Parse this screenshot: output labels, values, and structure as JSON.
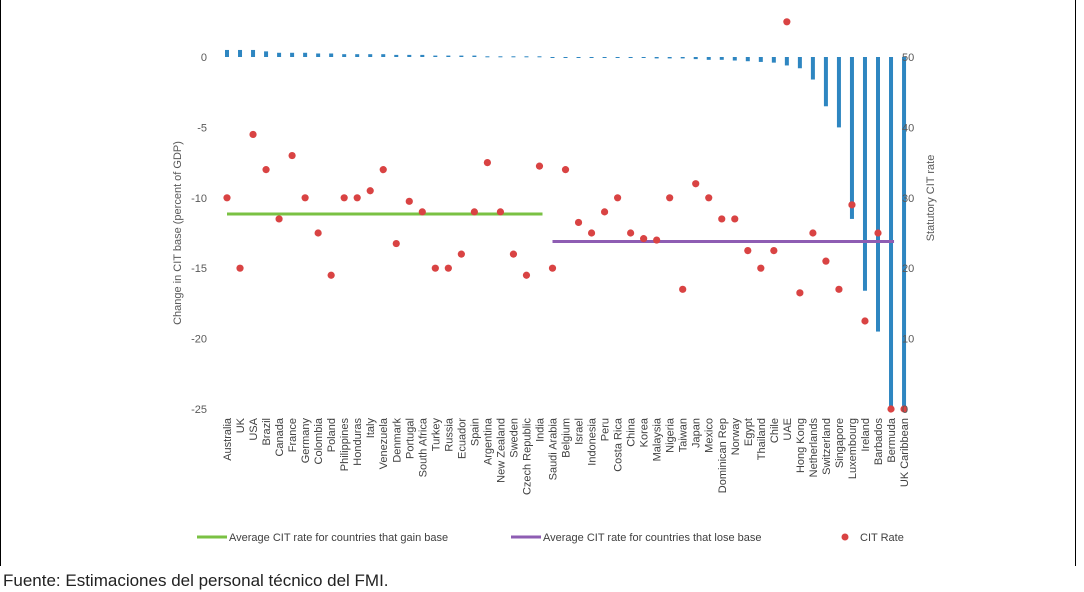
{
  "source_note": "Fuente: Estimaciones del personal técnico del FMI.",
  "colors": {
    "bars": "#2E86C1",
    "dots": "#D94343",
    "gain_line": "#7AC143",
    "lose_line": "#8E5DB3",
    "tick": "#595959"
  },
  "chart_data": {
    "type": "bar",
    "title": "",
    "xlabel": "",
    "ylabel": "Change in CIT base (percent of GDP)",
    "y2label": "Statutory CIT rate",
    "ylim": [
      -25,
      0
    ],
    "y2lim": [
      0,
      50
    ],
    "yticks": [
      0,
      -5,
      -10,
      -15,
      -20,
      -25
    ],
    "y2ticks": [
      50,
      40,
      30,
      20,
      10,
      0
    ],
    "categories": [
      "Australia",
      "UK",
      "USA",
      "Brazil",
      "Canada",
      "France",
      "Germany",
      "Colombia",
      "Poland",
      "Philippines",
      "Honduras",
      "Italy",
      "Venezuela",
      "Denmark",
      "Portugal",
      "South Africa",
      "Turkey",
      "Russia",
      "Ecuador",
      "Spain",
      "Argentina",
      "New Zealand",
      "Sweden",
      "Czech Republic",
      "India",
      "Saudi Arabia",
      "Belgium",
      "Israel",
      "Indonesia",
      "Peru",
      "Costa Rica",
      "China",
      "Korea",
      "Malaysia",
      "Nigeria",
      "Taiwan",
      "Japan",
      "Mexico",
      "Dominican Rep",
      "Norway",
      "Egypt",
      "Thailand",
      "Chile",
      "UAE",
      "Hong Kong",
      "Netherlands",
      "Switzerland",
      "Singapore",
      "Luxembourg",
      "Ireland",
      "Barbados",
      "Bermuda",
      "UK Caribbean"
    ],
    "series": [
      {
        "name": "",
        "kind": "bar",
        "axis": "left",
        "values": [
          0.5,
          0.5,
          0.5,
          0.4,
          0.3,
          0.3,
          0.3,
          0.25,
          0.25,
          0.2,
          0.2,
          0.2,
          0.2,
          0.15,
          0.15,
          0.15,
          0.1,
          0.1,
          0.1,
          0.1,
          0.05,
          0.05,
          0.05,
          0.05,
          0.05,
          0.0,
          -0.05,
          -0.05,
          -0.05,
          -0.05,
          -0.05,
          -0.05,
          -0.05,
          -0.1,
          -0.1,
          -0.1,
          -0.15,
          -0.2,
          -0.2,
          -0.25,
          -0.3,
          -0.35,
          -0.4,
          -0.6,
          -0.8,
          -1.6,
          -3.5,
          -5.0,
          -11.5,
          -16.6,
          -19.5,
          -26.0,
          -26.0
        ]
      },
      {
        "name": "CIT Rate",
        "kind": "scatter",
        "axis": "right",
        "values": [
          30,
          20,
          39,
          34,
          27,
          36,
          30,
          25,
          19,
          30,
          30,
          31,
          34,
          23.5,
          29.5,
          28,
          20,
          20,
          22,
          28,
          35,
          28,
          22,
          19,
          34.5,
          20,
          34,
          26.5,
          25,
          28,
          30,
          25,
          24.2,
          24,
          30,
          17,
          32,
          30,
          27,
          27,
          22.5,
          20,
          22.5,
          55,
          16.5,
          25,
          21,
          17,
          29,
          12.5,
          25,
          0,
          0
        ]
      },
      {
        "name": "Average CIT rate for countries that gain base",
        "kind": "line",
        "axis": "right",
        "value": 27.7,
        "span": [
          "Australia",
          "Saudi Arabia"
        ]
      },
      {
        "name": "Average CIT rate for countries that lose base",
        "kind": "line",
        "axis": "right",
        "value": 23.8,
        "span": [
          "Saudi Arabia",
          "UK Caribbean"
        ]
      }
    ],
    "legend_position": "bottom",
    "grid": false
  }
}
